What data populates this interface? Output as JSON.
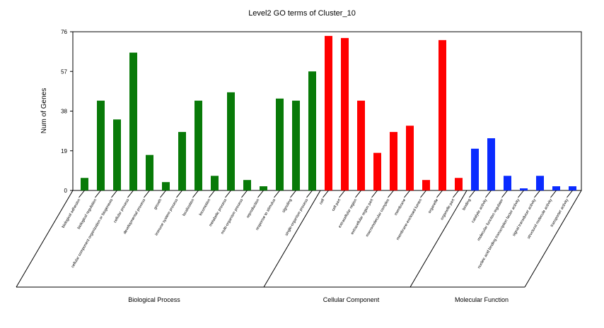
{
  "chart_data": {
    "type": "bar",
    "title": "Level2 GO terms of Cluster_10",
    "ylabel": "Num of Genes",
    "ylim": [
      0,
      76
    ],
    "yticks": [
      0,
      19,
      38,
      57,
      76
    ],
    "grid": false,
    "legend": "none",
    "categories": [
      "biological adhesion",
      "biological regulation",
      "cellular component organization or biogenesis",
      "cellular process",
      "developmental process",
      "growth",
      "immune system process",
      "localization",
      "locomotion",
      "metabolic process",
      "multi-organism process",
      "reproduction",
      "response to stimulus",
      "signaling",
      "single-organism process",
      "cell",
      "cell part",
      "extracellular region",
      "extracellular region part",
      "macromolecular complex",
      "membrane",
      "membrane-enclosed lumen",
      "organelle",
      "organelle part",
      "binding",
      "catalytic activity",
      "molecular function regulator",
      "nucleic acid binding transcription factor activity",
      "signal transducer activity",
      "structural molecule activity",
      "transporter activity"
    ],
    "values": [
      6,
      43,
      34,
      66,
      17,
      4,
      28,
      43,
      7,
      47,
      5,
      2,
      44,
      43,
      57,
      74,
      73,
      43,
      18,
      28,
      31,
      5,
      72,
      6,
      20,
      25,
      7,
      1,
      7,
      2,
      2
    ],
    "groups": [
      {
        "name": "Biological Process",
        "count": 15,
        "color": "#087a08"
      },
      {
        "name": "Cellular Component",
        "count": 9,
        "color": "#ff0000"
      },
      {
        "name": "Molecular Function",
        "count": 7,
        "color": "#0a2bff"
      }
    ]
  }
}
